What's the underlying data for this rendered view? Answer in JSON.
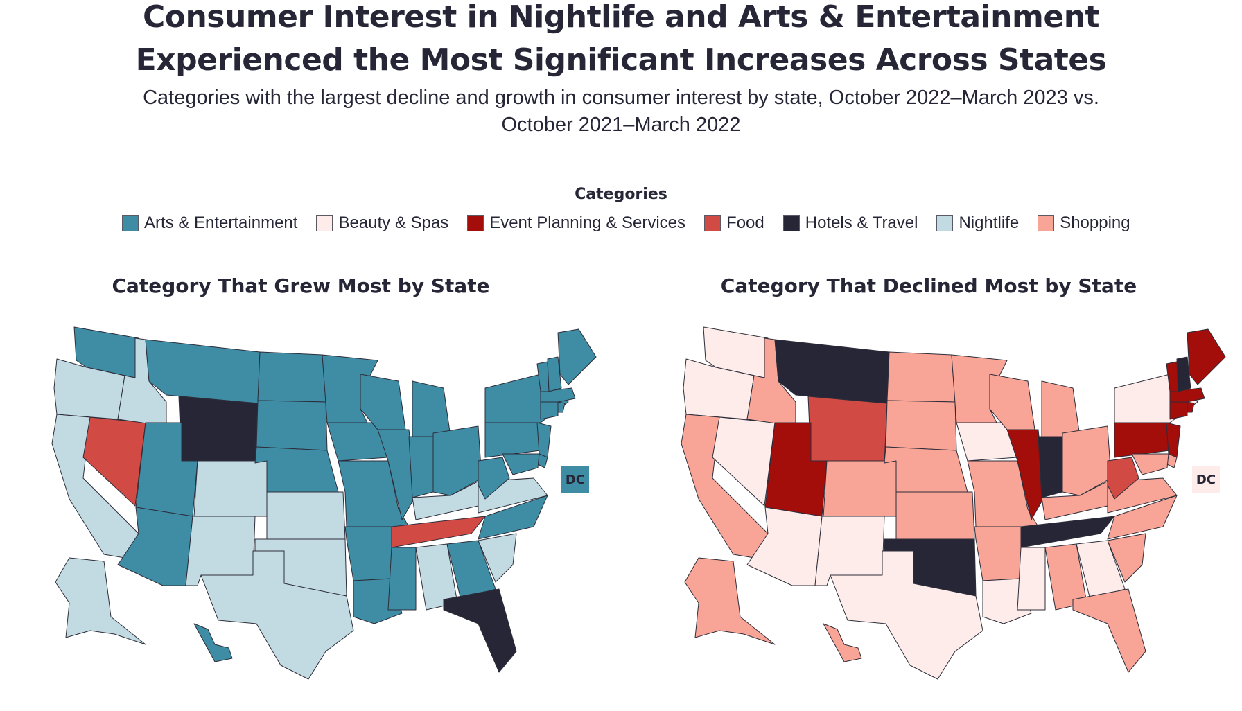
{
  "title_line1": "Consumer Interest in Nightlife and Arts & Entertainment",
  "title_line2": "Experienced the Most Significant Increases Across States",
  "subtitle_line1": "Categories with the largest decline and growth in consumer interest by state, October 2022–March 2023 vs.",
  "subtitle_line2": "October 2021–March 2022",
  "legend": {
    "title": "Categories",
    "items": [
      {
        "label": "Arts & Entertainment",
        "color": "#3f8ca5"
      },
      {
        "label": "Beauty & Spas",
        "color": "#fdecea"
      },
      {
        "label": "Event Planning & Services",
        "color": "#a30d0a"
      },
      {
        "label": "Food",
        "color": "#d24a44"
      },
      {
        "label": "Hotels & Travel",
        "color": "#262637"
      },
      {
        "label": "Nightlife",
        "color": "#c2dae1"
      },
      {
        "label": "Shopping",
        "color": "#f8a496"
      }
    ]
  },
  "maps": {
    "grew": {
      "title": "Category That Grew Most by State",
      "dc_label": "DC",
      "states": {
        "WA": "Arts & Entertainment",
        "OR": "Nightlife",
        "CA": "Nightlife",
        "NV": "Food",
        "ID": "Nightlife",
        "MT": "Arts & Entertainment",
        "WY": "Hotels & Travel",
        "UT": "Arts & Entertainment",
        "AZ": "Arts & Entertainment",
        "CO": "Nightlife",
        "NM": "Nightlife",
        "ND": "Arts & Entertainment",
        "SD": "Arts & Entertainment",
        "NE": "Arts & Entertainment",
        "KS": "Nightlife",
        "OK": "Nightlife",
        "TX": "Nightlife",
        "MN": "Arts & Entertainment",
        "IA": "Arts & Entertainment",
        "MO": "Arts & Entertainment",
        "AR": "Arts & Entertainment",
        "LA": "Arts & Entertainment",
        "WI": "Arts & Entertainment",
        "IL": "Arts & Entertainment",
        "MI": "Arts & Entertainment",
        "IN": "Arts & Entertainment",
        "OH": "Arts & Entertainment",
        "KY": "Nightlife",
        "TN": "Food",
        "MS": "Arts & Entertainment",
        "AL": "Nightlife",
        "GA": "Arts & Entertainment",
        "FL": "Hotels & Travel",
        "SC": "Nightlife",
        "NC": "Arts & Entertainment",
        "VA": "Nightlife",
        "WV": "Arts & Entertainment",
        "PA": "Arts & Entertainment",
        "NY": "Arts & Entertainment",
        "NJ": "Arts & Entertainment",
        "DE": "Arts & Entertainment",
        "MD": "Arts & Entertainment",
        "CT": "Arts & Entertainment",
        "RI": "Arts & Entertainment",
        "MA": "Arts & Entertainment",
        "VT": "Arts & Entertainment",
        "NH": "Arts & Entertainment",
        "ME": "Arts & Entertainment",
        "AK": "Nightlife",
        "HI": "Arts & Entertainment",
        "DC": "Arts & Entertainment"
      }
    },
    "declined": {
      "title": "Category That Declined Most by State",
      "dc_label": "DC",
      "states": {
        "WA": "Beauty & Spas",
        "OR": "Beauty & Spas",
        "CA": "Shopping",
        "NV": "Beauty & Spas",
        "ID": "Shopping",
        "MT": "Hotels & Travel",
        "WY": "Food",
        "UT": "Event Planning & Services",
        "AZ": "Beauty & Spas",
        "CO": "Shopping",
        "NM": "Beauty & Spas",
        "ND": "Shopping",
        "SD": "Shopping",
        "NE": "Shopping",
        "KS": "Shopping",
        "OK": "Hotels & Travel",
        "TX": "Beauty & Spas",
        "MN": "Shopping",
        "IA": "Beauty & Spas",
        "MO": "Shopping",
        "AR": "Shopping",
        "LA": "Beauty & Spas",
        "WI": "Shopping",
        "IL": "Event Planning & Services",
        "MI": "Shopping",
        "IN": "Hotels & Travel",
        "OH": "Shopping",
        "KY": "Shopping",
        "TN": "Hotels & Travel",
        "MS": "Beauty & Spas",
        "AL": "Shopping",
        "GA": "Beauty & Spas",
        "FL": "Shopping",
        "SC": "Shopping",
        "NC": "Shopping",
        "VA": "Shopping",
        "WV": "Food",
        "PA": "Event Planning & Services",
        "NY": "Beauty & Spas",
        "NJ": "Event Planning & Services",
        "DE": "Shopping",
        "MD": "Shopping",
        "CT": "Event Planning & Services",
        "RI": "Event Planning & Services",
        "MA": "Event Planning & Services",
        "VT": "Event Planning & Services",
        "NH": "Hotels & Travel",
        "ME": "Event Planning & Services",
        "AK": "Shopping",
        "HI": "Shopping",
        "DC": "Beauty & Spas"
      }
    }
  }
}
